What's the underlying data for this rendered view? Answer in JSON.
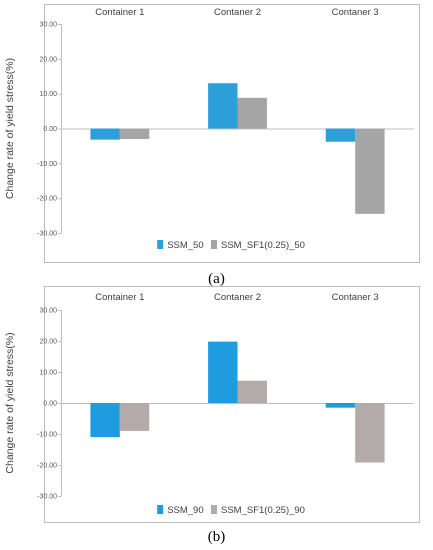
{
  "chart_data": [
    {
      "type": "bar",
      "caption": "(a)",
      "categories": [
        "Container 1",
        "Contaner 2",
        "Contaner 3"
      ],
      "ylabel": "Change rate of yield stress(%)",
      "ylim": [
        -30,
        30
      ],
      "yticks": [
        "30.00",
        "20.00",
        "10.00",
        "0.00",
        "-10.00",
        "-20.00",
        "-30.00"
      ],
      "legend_position": "bottom",
      "grid": false,
      "series": [
        {
          "name": "SSM_50",
          "color": "#2e9fd8",
          "values": [
            -3.2,
            13.0,
            -3.8
          ]
        },
        {
          "name": "SSM_SF1(0.25)_50",
          "color": "#a5a5a5",
          "values": [
            -3.0,
            8.8,
            -24.5
          ]
        }
      ]
    },
    {
      "type": "bar",
      "caption": "(b)",
      "categories": [
        "Container 1",
        "Contaner 2",
        "Contaner 3"
      ],
      "ylabel": "Change rate of yield stress(%)",
      "ylim": [
        -30,
        30
      ],
      "yticks": [
        "30.00",
        "20.00",
        "10.00",
        "0.00",
        "-10.00",
        "-20.00",
        "-30.00"
      ],
      "legend_position": "bottom",
      "grid": false,
      "series": [
        {
          "name": "SSM_90",
          "color": "#1f9be0",
          "values": [
            -11.0,
            19.8,
            -1.5
          ]
        },
        {
          "name": "SSM_SF1(0.25)_90",
          "color": "#b3aaaa",
          "values": [
            -9.0,
            7.2,
            -19.2
          ]
        }
      ]
    }
  ]
}
